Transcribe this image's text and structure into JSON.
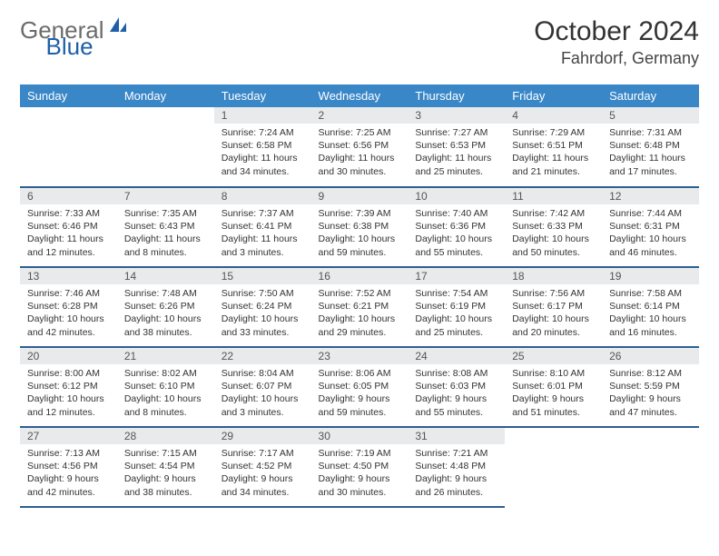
{
  "logo": {
    "gray": "General",
    "blue": "Blue"
  },
  "title": "October 2024",
  "location": "Fahrdorf, Germany",
  "colors": {
    "header_bg": "#3a87c8",
    "header_text": "#ffffff",
    "daynum_bg": "#e8eaec",
    "row_border": "#2f5f8f",
    "logo_gray": "#6b6b6b",
    "logo_blue": "#1e5fa8"
  },
  "weekdays": [
    "Sunday",
    "Monday",
    "Tuesday",
    "Wednesday",
    "Thursday",
    "Friday",
    "Saturday"
  ],
  "weeks": [
    [
      null,
      null,
      {
        "n": "1",
        "sr": "7:24 AM",
        "ss": "6:58 PM",
        "dl": "11 hours and 34 minutes."
      },
      {
        "n": "2",
        "sr": "7:25 AM",
        "ss": "6:56 PM",
        "dl": "11 hours and 30 minutes."
      },
      {
        "n": "3",
        "sr": "7:27 AM",
        "ss": "6:53 PM",
        "dl": "11 hours and 25 minutes."
      },
      {
        "n": "4",
        "sr": "7:29 AM",
        "ss": "6:51 PM",
        "dl": "11 hours and 21 minutes."
      },
      {
        "n": "5",
        "sr": "7:31 AM",
        "ss": "6:48 PM",
        "dl": "11 hours and 17 minutes."
      }
    ],
    [
      {
        "n": "6",
        "sr": "7:33 AM",
        "ss": "6:46 PM",
        "dl": "11 hours and 12 minutes."
      },
      {
        "n": "7",
        "sr": "7:35 AM",
        "ss": "6:43 PM",
        "dl": "11 hours and 8 minutes."
      },
      {
        "n": "8",
        "sr": "7:37 AM",
        "ss": "6:41 PM",
        "dl": "11 hours and 3 minutes."
      },
      {
        "n": "9",
        "sr": "7:39 AM",
        "ss": "6:38 PM",
        "dl": "10 hours and 59 minutes."
      },
      {
        "n": "10",
        "sr": "7:40 AM",
        "ss": "6:36 PM",
        "dl": "10 hours and 55 minutes."
      },
      {
        "n": "11",
        "sr": "7:42 AM",
        "ss": "6:33 PM",
        "dl": "10 hours and 50 minutes."
      },
      {
        "n": "12",
        "sr": "7:44 AM",
        "ss": "6:31 PM",
        "dl": "10 hours and 46 minutes."
      }
    ],
    [
      {
        "n": "13",
        "sr": "7:46 AM",
        "ss": "6:28 PM",
        "dl": "10 hours and 42 minutes."
      },
      {
        "n": "14",
        "sr": "7:48 AM",
        "ss": "6:26 PM",
        "dl": "10 hours and 38 minutes."
      },
      {
        "n": "15",
        "sr": "7:50 AM",
        "ss": "6:24 PM",
        "dl": "10 hours and 33 minutes."
      },
      {
        "n": "16",
        "sr": "7:52 AM",
        "ss": "6:21 PM",
        "dl": "10 hours and 29 minutes."
      },
      {
        "n": "17",
        "sr": "7:54 AM",
        "ss": "6:19 PM",
        "dl": "10 hours and 25 minutes."
      },
      {
        "n": "18",
        "sr": "7:56 AM",
        "ss": "6:17 PM",
        "dl": "10 hours and 20 minutes."
      },
      {
        "n": "19",
        "sr": "7:58 AM",
        "ss": "6:14 PM",
        "dl": "10 hours and 16 minutes."
      }
    ],
    [
      {
        "n": "20",
        "sr": "8:00 AM",
        "ss": "6:12 PM",
        "dl": "10 hours and 12 minutes."
      },
      {
        "n": "21",
        "sr": "8:02 AM",
        "ss": "6:10 PM",
        "dl": "10 hours and 8 minutes."
      },
      {
        "n": "22",
        "sr": "8:04 AM",
        "ss": "6:07 PM",
        "dl": "10 hours and 3 minutes."
      },
      {
        "n": "23",
        "sr": "8:06 AM",
        "ss": "6:05 PM",
        "dl": "9 hours and 59 minutes."
      },
      {
        "n": "24",
        "sr": "8:08 AM",
        "ss": "6:03 PM",
        "dl": "9 hours and 55 minutes."
      },
      {
        "n": "25",
        "sr": "8:10 AM",
        "ss": "6:01 PM",
        "dl": "9 hours and 51 minutes."
      },
      {
        "n": "26",
        "sr": "8:12 AM",
        "ss": "5:59 PM",
        "dl": "9 hours and 47 minutes."
      }
    ],
    [
      {
        "n": "27",
        "sr": "7:13 AM",
        "ss": "4:56 PM",
        "dl": "9 hours and 42 minutes."
      },
      {
        "n": "28",
        "sr": "7:15 AM",
        "ss": "4:54 PM",
        "dl": "9 hours and 38 minutes."
      },
      {
        "n": "29",
        "sr": "7:17 AM",
        "ss": "4:52 PM",
        "dl": "9 hours and 34 minutes."
      },
      {
        "n": "30",
        "sr": "7:19 AM",
        "ss": "4:50 PM",
        "dl": "9 hours and 30 minutes."
      },
      {
        "n": "31",
        "sr": "7:21 AM",
        "ss": "4:48 PM",
        "dl": "9 hours and 26 minutes."
      },
      null,
      null
    ]
  ],
  "labels": {
    "sunrise": "Sunrise:",
    "sunset": "Sunset:",
    "daylight": "Daylight:"
  }
}
